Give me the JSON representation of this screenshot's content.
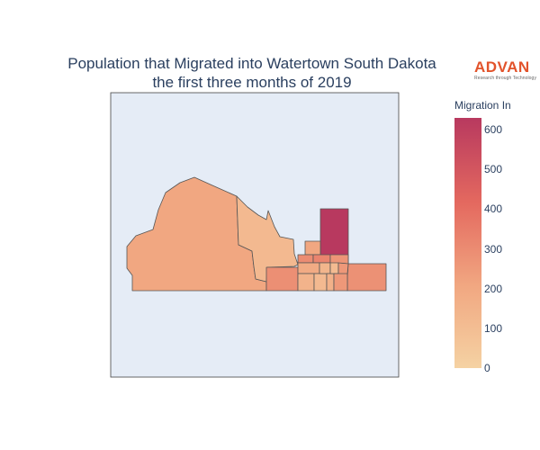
{
  "title_line1": "Population that Migrated into Watertown South Dakota",
  "title_line2": "the first three months of 2019",
  "logo": {
    "word": "ADVAN",
    "tagline": "Research through Technology"
  },
  "colorbar": {
    "title": "Migration In",
    "ticks": [
      "600",
      "500",
      "400",
      "300",
      "200",
      "100",
      "0"
    ],
    "tick_values": [
      600,
      500,
      400,
      300,
      200,
      100,
      0
    ],
    "range": [
      0,
      630
    ],
    "colorscale": [
      "#f5d2a3",
      "#f1a781",
      "#e4695f",
      "#b8395f"
    ]
  },
  "map": {
    "background": "#e5ecf6",
    "region_values": {
      "west-large": 210,
      "central-north": 120,
      "northeast-tall": 630,
      "east-wide": 285,
      "south-central-left": 290,
      "small-a": 210,
      "small-b": 300,
      "small-c": 330,
      "small-d": 270,
      "small-e": 190,
      "small-f": 150,
      "small-g": 120,
      "small-h": 140,
      "small-i": 160,
      "small-j": 110,
      "small-k": 260
    }
  }
}
